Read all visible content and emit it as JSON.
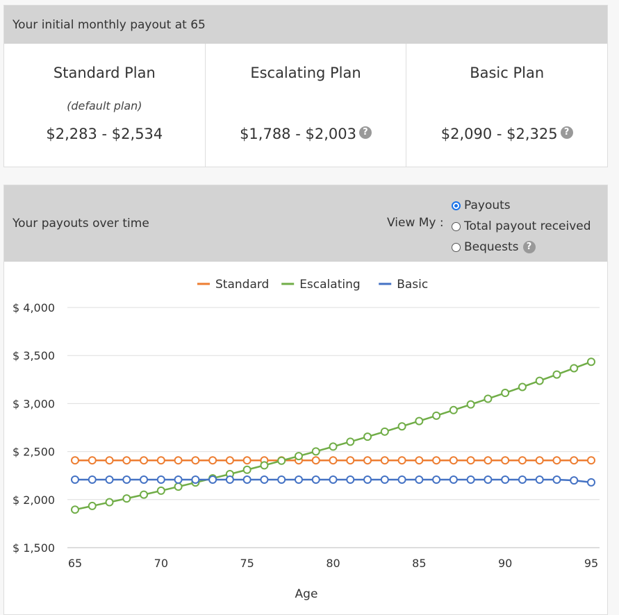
{
  "summary": {
    "title": "Your initial monthly payout at 65",
    "plans": [
      {
        "name": "Standard Plan",
        "subtitle": "(default plan)",
        "range": "$2,283 - $2,534",
        "help": false
      },
      {
        "name": "Escalating Plan",
        "subtitle": "",
        "range": "$1,788 - $2,003",
        "help": true
      },
      {
        "name": "Basic Plan",
        "subtitle": "",
        "range": "$2,090 - $2,325",
        "help": true
      }
    ]
  },
  "payouts": {
    "title": "Your payouts over time",
    "view_label": "View My :",
    "options": [
      {
        "label": "Payouts",
        "selected": true
      },
      {
        "label": "Total payout received",
        "selected": false
      },
      {
        "label": "Bequests",
        "selected": false
      }
    ],
    "help_icon": "?"
  },
  "chart_data": {
    "type": "line",
    "xlabel": "Age",
    "ylabel": "",
    "xlim": [
      65,
      95
    ],
    "ylim": [
      1500,
      4000
    ],
    "xticks": [
      65,
      70,
      75,
      80,
      85,
      90,
      95
    ],
    "yticks": [
      {
        "v": 1500,
        "label": "$ 1,500"
      },
      {
        "v": 2000,
        "label": "$ 2,000"
      },
      {
        "v": 2500,
        "label": "$ 2,500"
      },
      {
        "v": 3000,
        "label": "$ 3,000"
      },
      {
        "v": 3500,
        "label": "$ 3,500"
      },
      {
        "v": 4000,
        "label": "$ 4,000"
      }
    ],
    "grid": true,
    "legend": "top",
    "x": [
      65,
      66,
      67,
      68,
      69,
      70,
      71,
      72,
      73,
      74,
      75,
      76,
      77,
      78,
      79,
      80,
      81,
      82,
      83,
      84,
      85,
      86,
      87,
      88,
      89,
      90,
      91,
      92,
      93,
      94,
      95
    ],
    "series": [
      {
        "name": "Standard",
        "color": "#ed7d31",
        "values": [
          2409,
          2409,
          2409,
          2409,
          2409,
          2409,
          2409,
          2409,
          2409,
          2409,
          2409,
          2409,
          2409,
          2409,
          2409,
          2409,
          2409,
          2409,
          2409,
          2409,
          2409,
          2409,
          2409,
          2409,
          2409,
          2409,
          2409,
          2409,
          2409,
          2409,
          2409
        ]
      },
      {
        "name": "Escalating",
        "color": "#70ad47",
        "values": [
          1896,
          1934,
          1973,
          2012,
          2052,
          2093,
          2135,
          2178,
          2222,
          2266,
          2311,
          2357,
          2405,
          2453,
          2502,
          2552,
          2603,
          2655,
          2708,
          2763,
          2818,
          2874,
          2932,
          2991,
          3050,
          3111,
          3173,
          3237,
          3302,
          3368,
          3435
        ]
      },
      {
        "name": "Basic",
        "color": "#4472c4",
        "values": [
          2208,
          2208,
          2208,
          2208,
          2208,
          2208,
          2208,
          2208,
          2208,
          2208,
          2208,
          2208,
          2208,
          2208,
          2208,
          2208,
          2208,
          2208,
          2208,
          2208,
          2208,
          2208,
          2208,
          2208,
          2208,
          2208,
          2208,
          2208,
          2208,
          2200,
          2180
        ]
      }
    ]
  }
}
